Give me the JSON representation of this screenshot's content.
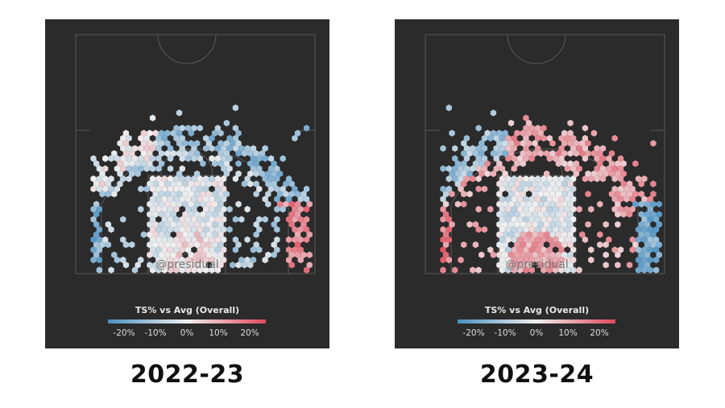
{
  "chart_data": [
    {
      "type": "heatmap",
      "subtype": "hexbin-shot-chart",
      "season": "2022-23",
      "watermark": "@presidual",
      "legend_title": "TS% vs Avg (Overall)",
      "colorbar_ticks": [
        "-20%",
        "-10%",
        "0%",
        "10%",
        "20%"
      ],
      "colorbar_range": [
        -20,
        20
      ],
      "colors": {
        "negative": "#4a90c2",
        "neutral": "#f0f0f0",
        "positive": "#e04a5a"
      },
      "zones": [
        {
          "zone": "restricted-area",
          "ts_diff": 2
        },
        {
          "zone": "paint",
          "ts_diff": -2
        },
        {
          "zone": "mid-range",
          "ts_diff": -6
        },
        {
          "zone": "above-break-3",
          "ts_diff": -10
        },
        {
          "zone": "left-corner-3",
          "ts_diff": -14
        },
        {
          "zone": "right-corner-3",
          "ts_diff": 12
        }
      ]
    },
    {
      "type": "heatmap",
      "subtype": "hexbin-shot-chart",
      "season": "2023-24",
      "watermark": "@presidual",
      "legend_title": "TS% vs Avg (Overall)",
      "colorbar_ticks": [
        "-20%",
        "-10%",
        "0%",
        "10%",
        "20%"
      ],
      "colorbar_range": [
        -20,
        20
      ],
      "colors": {
        "negative": "#4a90c2",
        "neutral": "#f0f0f0",
        "positive": "#e04a5a"
      },
      "zones": [
        {
          "zone": "restricted-area",
          "ts_diff": 9
        },
        {
          "zone": "paint",
          "ts_diff": -2
        },
        {
          "zone": "mid-range",
          "ts_diff": 8
        },
        {
          "zone": "above-break-3",
          "ts_diff": 9
        },
        {
          "zone": "left-wing-3",
          "ts_diff": -9
        },
        {
          "zone": "left-corner-3",
          "ts_diff": 14
        },
        {
          "zone": "right-corner-3",
          "ts_diff": -14
        }
      ]
    }
  ]
}
